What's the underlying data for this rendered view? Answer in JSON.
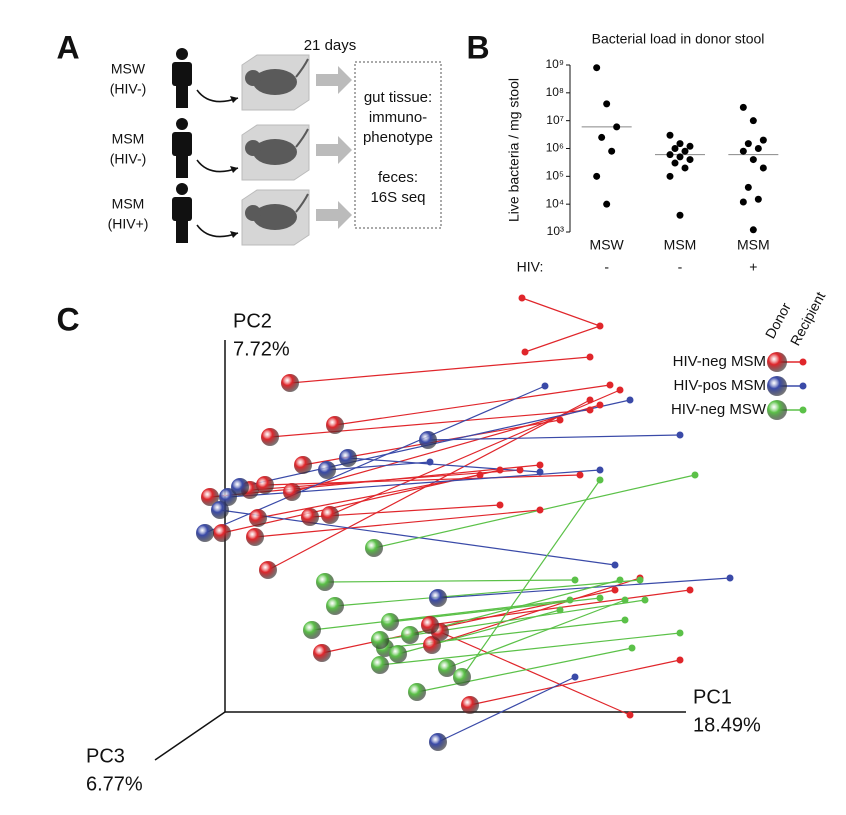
{
  "panel_a": {
    "label": "A",
    "duration": "21 days",
    "donors": [
      "MSW",
      "(HIV-)",
      "MSM",
      "(HIV-)",
      "MSM",
      "(HIV+)"
    ],
    "readout": [
      "gut tissue:",
      "immuno-",
      "phenotype",
      "feces:",
      "16S seq"
    ]
  },
  "chart_data": {
    "type": "strip",
    "panel_label": "B",
    "title": "Bacterial load in donor stool",
    "ylabel": "Live bacteria / mg stool",
    "log_scale": true,
    "color": "#000000",
    "categories": [
      "MSW",
      "MSM",
      "MSM"
    ],
    "group_label": "HIV:",
    "groups": [
      "-",
      "-",
      "+"
    ],
    "values": [
      [
        800000000,
        40000000,
        6000000,
        2500000,
        800000,
        100000,
        10000
      ],
      [
        3000000,
        1500000,
        1200000,
        1000000,
        800000,
        600000,
        500000,
        400000,
        300000,
        200000,
        100000,
        4000
      ],
      [
        30000000,
        10000000,
        2000000,
        1500000,
        1000000,
        800000,
        400000,
        200000,
        40000,
        15000,
        12000,
        1200
      ]
    ],
    "means": [
      6000000,
      600000,
      600000
    ],
    "ylim": [
      1000,
      1000000000
    ],
    "yticks": [
      {
        "value": 1000,
        "label": "10³"
      },
      {
        "value": 10000,
        "label": "10⁴"
      },
      {
        "value": 100000,
        "label": "10⁵"
      },
      {
        "value": 1000000,
        "label": "10⁶"
      },
      {
        "value": 10000000,
        "label": "10⁷"
      },
      {
        "value": 100000000,
        "label": "10⁸"
      },
      {
        "value": 1000000000,
        "label": "10⁹"
      }
    ]
  },
  "panel_c": {
    "label": "C",
    "pc2": "PC2",
    "pc2_pct": "7.72%",
    "pc1": "PC1",
    "pc1_pct": "18.49%",
    "pc3": "PC3",
    "pc3_pct": "6.77%",
    "legend_header": [
      "Donor",
      "Recipient"
    ],
    "legend": [
      {
        "name": "HIV-neg MSM",
        "color": "#e0262b"
      },
      {
        "name": "HIV-pos MSM",
        "color": "#3a4aa8"
      },
      {
        "name": "HIV-neg MSW",
        "color": "#5bc148"
      }
    ]
  }
}
